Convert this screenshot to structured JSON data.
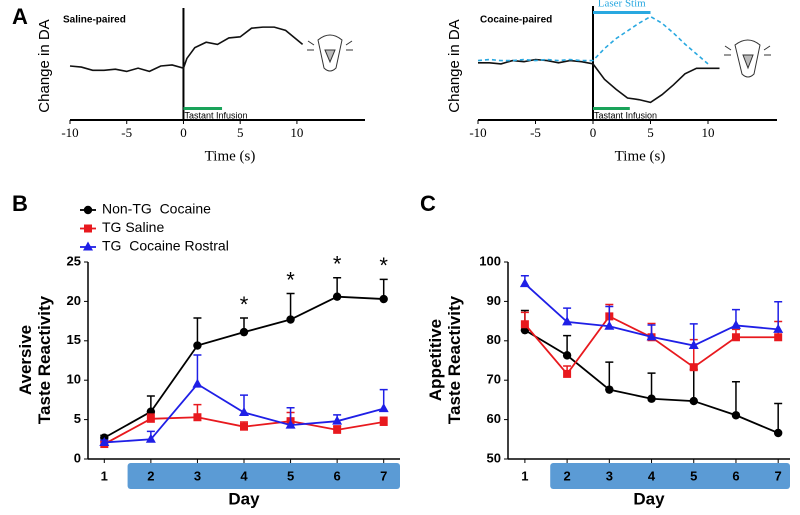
{
  "chart_data": [
    {
      "type": "line",
      "panel": "A",
      "title": "Saline-paired",
      "xlabel": "Time (s)",
      "ylabel": [
        "Change in DA"
      ],
      "x": [
        -10,
        -9,
        -8,
        -7,
        -6,
        -5,
        -4,
        -3,
        -2,
        -1,
        0,
        0.3,
        1,
        2,
        3,
        4,
        5,
        6,
        7,
        8,
        9,
        10.5
      ],
      "series": [
        {
          "color": "#111111",
          "values": [
            5.0,
            4.9,
            4.6,
            4.6,
            4.7,
            4.5,
            4.8,
            4.5,
            5.0,
            5.1,
            4.8,
            5.7,
            6.7,
            7.2,
            7.0,
            7.6,
            7.7,
            8.5,
            8.6,
            8.6,
            8.3,
            7.0
          ]
        }
      ],
      "xlim": [
        -10,
        16
      ],
      "ylim": [
        0,
        10
      ],
      "xticks": [
        -10,
        -5,
        0,
        5,
        10
      ],
      "y_axis_at_zero": true,
      "stim_bars": [
        {
          "label": "Tastant Infusion",
          "x": [
            0,
            3.4
          ],
          "color": "#1aa35a",
          "position": "bottom"
        }
      ]
    },
    {
      "type": "line",
      "panel": "",
      "title": "Cocaine-paired",
      "xlabel": "Time (s)",
      "ylabel": [
        "Change in DA"
      ],
      "x": [
        -10,
        -9,
        -8,
        -7,
        -6,
        -5,
        -4,
        -3,
        -2,
        -1,
        0,
        1,
        2,
        3,
        4,
        5,
        6,
        7,
        8,
        9,
        10,
        11
      ],
      "series": [
        {
          "color": "#111111",
          "values": [
            5.2,
            5.2,
            5.1,
            5.4,
            5.3,
            5.5,
            5.4,
            5.2,
            5.4,
            5.3,
            5.1,
            3.7,
            2.8,
            2.0,
            1.85,
            1.6,
            2.3,
            3.2,
            4.2,
            4.7,
            4.7,
            4.7
          ]
        },
        {
          "color": "#29a8e0",
          "dash": true,
          "values": [
            5.4,
            5.5,
            5.4,
            5.4,
            5.5,
            5.4,
            5.5,
            5.4,
            5.5,
            5.4,
            5.4,
            6.5,
            7.4,
            8.1,
            8.8,
            9.4,
            8.8,
            7.9,
            6.9,
            6.0,
            5.1,
            null
          ]
        }
      ],
      "xlim": [
        -10,
        16
      ],
      "ylim": [
        0,
        10
      ],
      "xticks": [
        -10,
        -5,
        0,
        5,
        10
      ],
      "y_axis_at_zero": true,
      "stim_bars": [
        {
          "label": "Laser Stim",
          "x": [
            0,
            5
          ],
          "color": "#29a8e0",
          "position": "top"
        },
        {
          "label": "Tastant Infusion",
          "x": [
            0,
            3.2
          ],
          "color": "#1aa35a",
          "position": "bottom"
        }
      ]
    },
    {
      "type": "line",
      "panel": "B",
      "xlabel": "Day",
      "ylabel": [
        "Aversive",
        "Taste Reactivity"
      ],
      "x": [
        1,
        2,
        3,
        4,
        5,
        6,
        7
      ],
      "series": [
        {
          "name": "Non-TG  Cocaine",
          "color": "#000000",
          "marker": "circle",
          "values": [
            2.7,
            6.0,
            14.4,
            16.1,
            17.7,
            20.6,
            20.3
          ],
          "errors": [
            0.3,
            2.0,
            3.5,
            1.8,
            3.3,
            2.4,
            2.5
          ]
        },
        {
          "name": "TG Saline",
          "color": "#e8191e",
          "marker": "square",
          "values": [
            1.9,
            5.1,
            5.3,
            4.1,
            4.8,
            3.7,
            4.7
          ],
          "errors": [
            0.3,
            0.6,
            1.6,
            0.6,
            1.1,
            0.5,
            0.6
          ]
        },
        {
          "name": "TG  Cocaine Rostral",
          "color": "#1f1fe6",
          "marker": "triangle",
          "values": [
            2.1,
            2.5,
            9.5,
            5.9,
            4.3,
            4.8,
            6.4
          ],
          "errors": [
            0.3,
            1.0,
            3.7,
            2.2,
            2.2,
            0.8,
            2.4
          ]
        }
      ],
      "xlim": [
        0.65,
        7.35
      ],
      "ylim": [
        0,
        25
      ],
      "xticks": [
        1,
        2,
        3,
        4,
        5,
        6,
        7
      ],
      "yticks": [
        0,
        5,
        10,
        15,
        20,
        25
      ],
      "band": {
        "x": [
          1.5,
          7.35
        ],
        "color": "#5b9bd5"
      },
      "legend": "top-left",
      "annotations": [
        {
          "text": "*",
          "x": 4
        },
        {
          "text": "*",
          "x": 5
        },
        {
          "text": "*",
          "x": 6
        },
        {
          "text": "*",
          "x": 7
        }
      ]
    },
    {
      "type": "line",
      "panel": "C",
      "xlabel": "Day",
      "ylabel": [
        "Appetitive",
        "Taste Reactivity"
      ],
      "x": [
        1,
        2,
        3,
        4,
        5,
        6,
        7
      ],
      "series": [
        {
          "color": "#000000",
          "marker": "circle",
          "values": [
            82.7,
            76.3,
            67.6,
            65.3,
            64.7,
            61.1,
            56.6
          ],
          "errors": [
            5,
            5,
            7,
            6.5,
            8,
            8.5,
            7.5
          ]
        },
        {
          "color": "#e8191e",
          "marker": "square",
          "values": [
            84.2,
            71.6,
            86.2,
            80.9,
            73.3,
            80.9,
            80.9
          ],
          "errors": [
            3,
            2,
            3,
            3.5,
            7,
            2,
            4
          ]
        },
        {
          "color": "#1f1fe6",
          "marker": "triangle",
          "values": [
            94.5,
            84.8,
            83.7,
            81.0,
            78.8,
            83.9,
            82.9
          ],
          "errors": [
            2,
            3.5,
            5,
            3,
            5.5,
            4,
            7
          ]
        }
      ],
      "xlim": [
        0.6,
        7.28
      ],
      "ylim": [
        50,
        100
      ],
      "xticks": [
        1,
        2,
        3,
        4,
        5,
        6,
        7
      ],
      "yticks": [
        50,
        60,
        70,
        80,
        90,
        100
      ],
      "band": {
        "x": [
          1.6,
          7.28
        ],
        "color": "#5b9bd5"
      }
    }
  ]
}
